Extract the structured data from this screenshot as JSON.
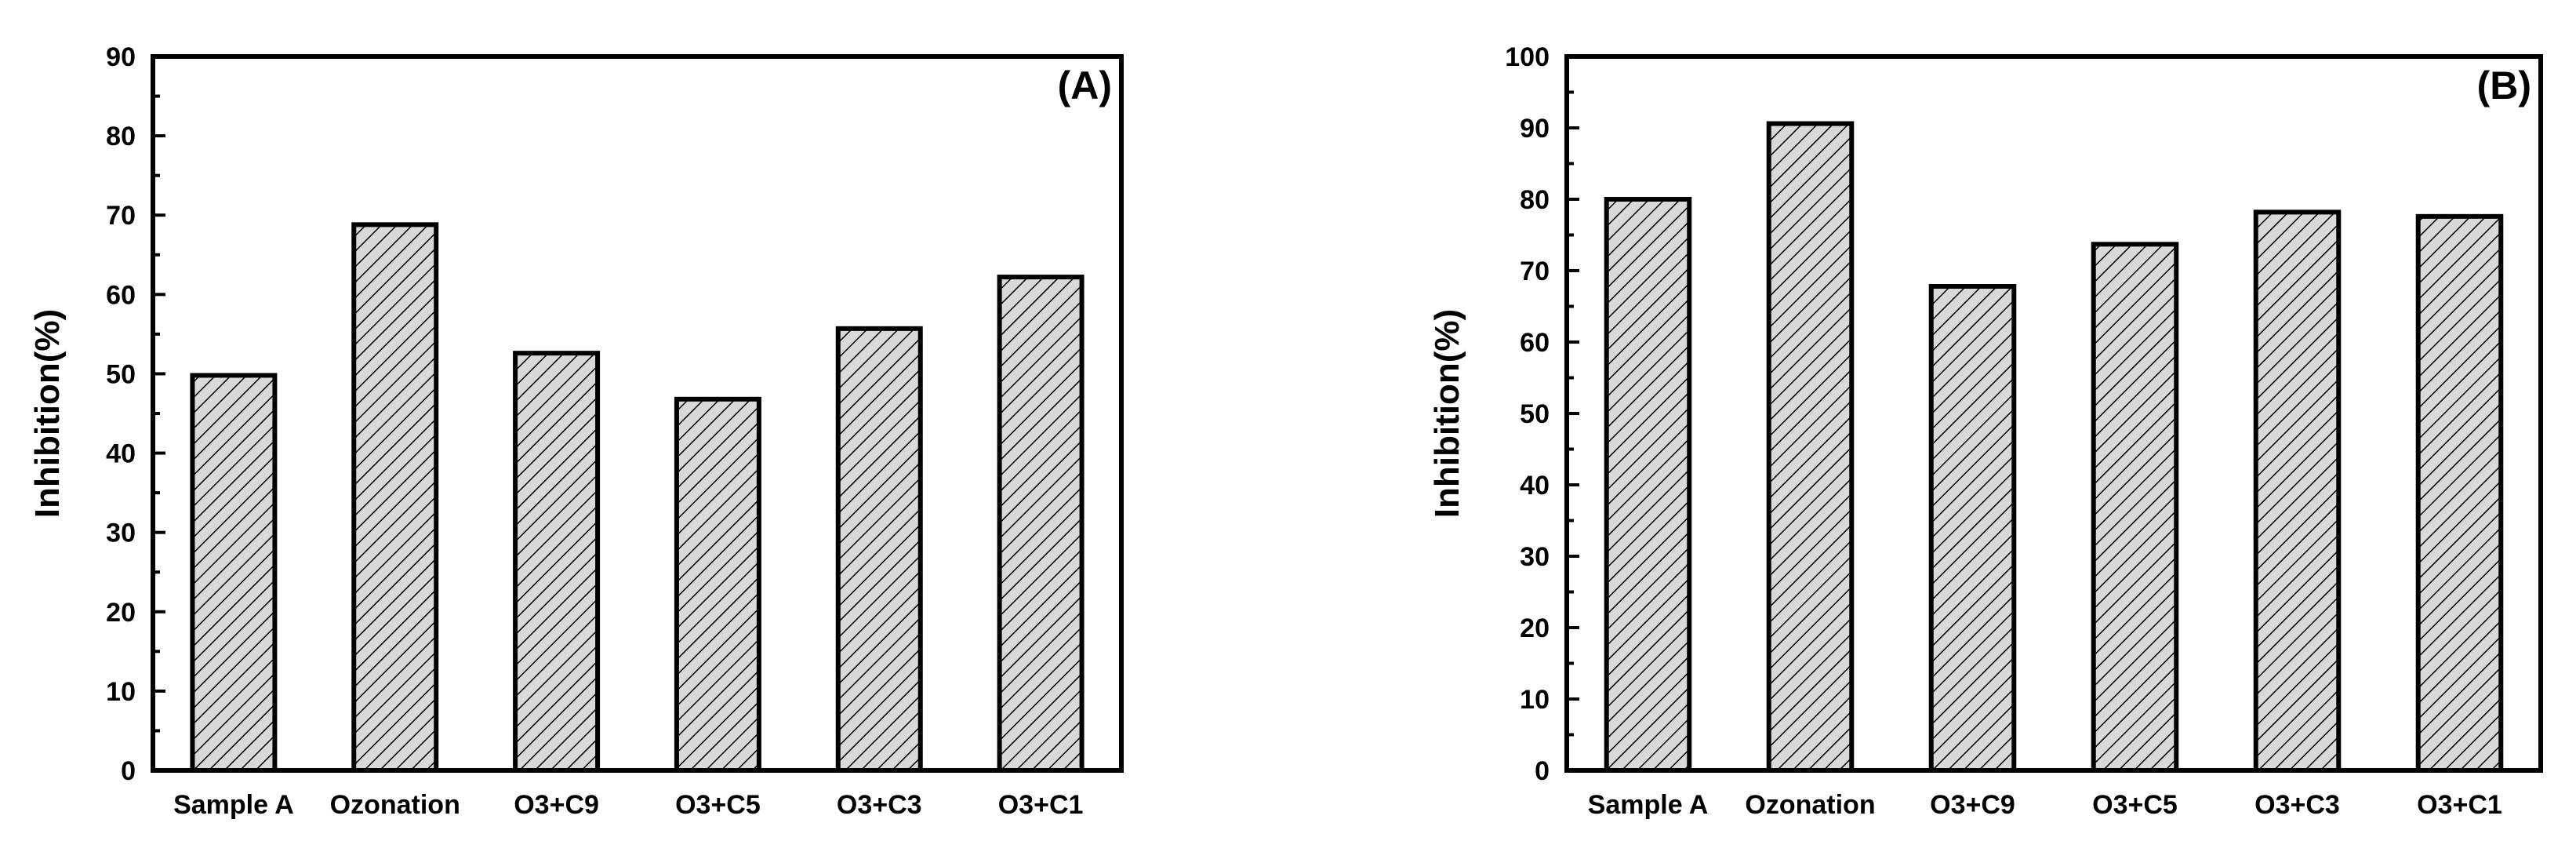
{
  "chart_data": [
    {
      "type": "bar",
      "panel_label": "(A)",
      "title": "",
      "xlabel": "",
      "ylabel": "Inhibition(%)",
      "categories": [
        "Sample A",
        "Ozonation",
        "O3+C9",
        "O3+C5",
        "O3+C3",
        "O3+C1"
      ],
      "values": [
        49.8,
        68.8,
        52.6,
        46.8,
        55.7,
        62.2
      ],
      "ylim": [
        0,
        90
      ],
      "yticks": [
        "0",
        "10",
        "20",
        "30",
        "40",
        "50",
        "60",
        "70",
        "80",
        "90"
      ],
      "grid": false,
      "bar_fill": "#d9d9d9",
      "hatch_color": "#000000"
    },
    {
      "type": "bar",
      "panel_label": "(B)",
      "title": "",
      "xlabel": "",
      "ylabel": "Inhibition(%)",
      "categories": [
        "Sample A",
        "Ozonation",
        "O3+C9",
        "O3+C5",
        "O3+C3",
        "O3+C1"
      ],
      "values": [
        80.0,
        90.6,
        67.8,
        73.7,
        78.2,
        77.6
      ],
      "ylim": [
        0,
        100
      ],
      "yticks": [
        "0",
        "10",
        "20",
        "30",
        "40",
        "50",
        "60",
        "70",
        "80",
        "90",
        "100"
      ],
      "grid": false,
      "bar_fill": "#d9d9d9",
      "hatch_color": "#000000"
    }
  ]
}
